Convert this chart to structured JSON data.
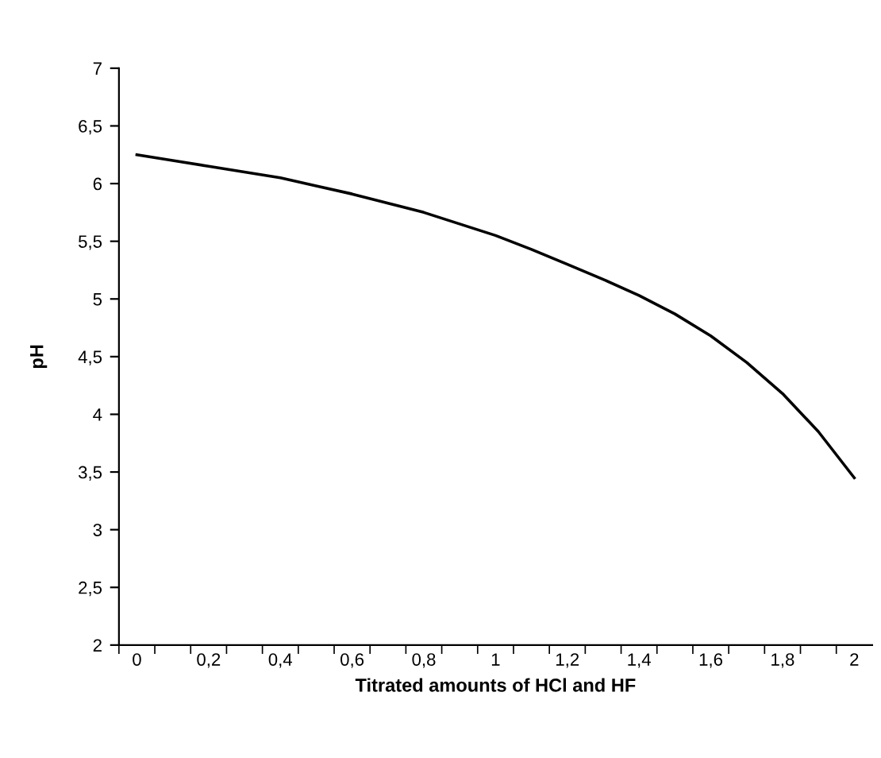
{
  "chart_data": {
    "type": "line",
    "xlabel": "Titrated amounts of HCl and HF",
    "ylabel": "pH",
    "categories": [
      "0",
      null,
      "0,2",
      null,
      "0,4",
      null,
      "0,6",
      null,
      "0,8",
      null,
      "1",
      null,
      "1,2",
      null,
      "1,4",
      null,
      "1,6",
      null,
      "1,8",
      null,
      "2"
    ],
    "series": [
      {
        "color": "#000000",
        "values": [
          6.25,
          6.2,
          6.15,
          6.1,
          6.05,
          5.98,
          5.91,
          5.83,
          5.75,
          5.65,
          5.55,
          5.43,
          5.3,
          5.17,
          5.03,
          4.87,
          4.68,
          4.45,
          4.18,
          3.85,
          3.45
        ]
      }
    ],
    "ylim": [
      2,
      7
    ],
    "yticks": [
      2,
      {
        "value": 2.5,
        "label": "2,5"
      },
      3,
      {
        "value": 3.5,
        "label": "3,5"
      },
      4,
      {
        "value": 4.5,
        "label": "4,5"
      },
      5,
      {
        "value": 5.5,
        "label": "5,5"
      },
      6,
      {
        "value": 6.5,
        "label": "6,5"
      },
      7
    ],
    "marker": "none",
    "line_style": "solid"
  }
}
